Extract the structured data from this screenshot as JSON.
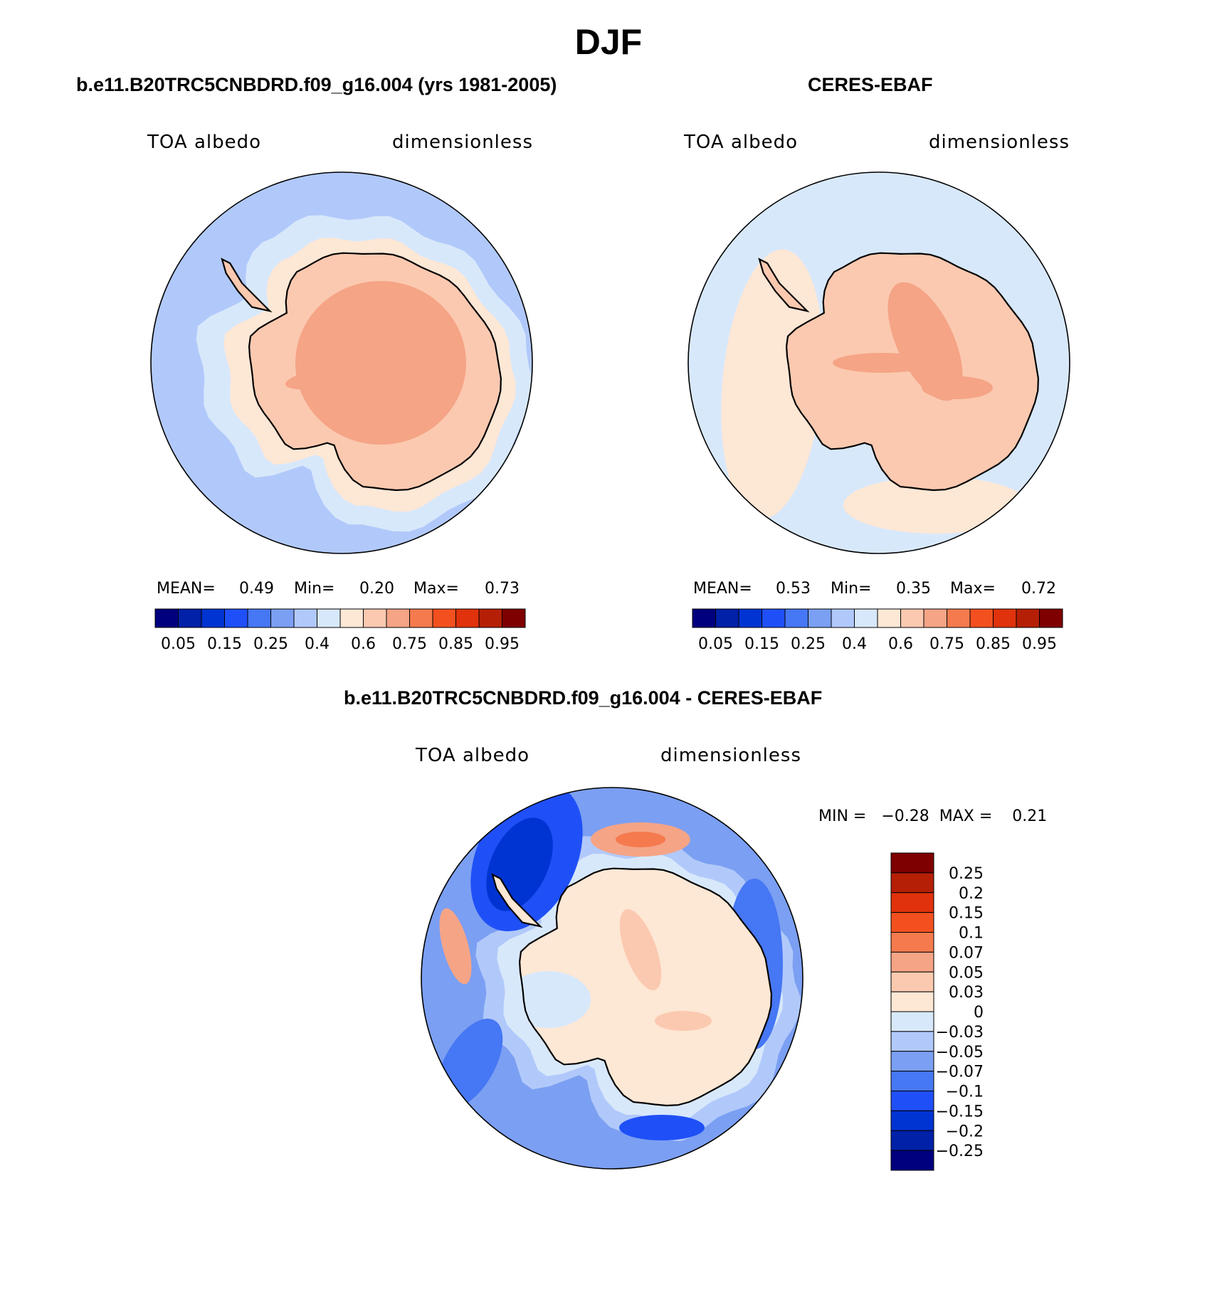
{
  "figure": {
    "title": "DJF"
  },
  "panel1": {
    "title": "b.e11.B20TRC5CNBDRD.f09_g16.004 (yrs 1981-2005)",
    "left_label": "TOA albedo",
    "right_label": "dimensionless",
    "mean_label": "MEAN=",
    "mean": "0.49",
    "min_label": "Min=",
    "min": "0.20",
    "max_label": "Max=",
    "max": "0.73"
  },
  "panel2": {
    "title": "CERES-EBAF",
    "left_label": "TOA albedo",
    "right_label": "dimensionless",
    "mean_label": "MEAN=",
    "mean": "0.53",
    "min_label": "Min=",
    "min": "0.35",
    "max_label": "Max=",
    "max": "0.72"
  },
  "panel3": {
    "title": "b.e11.B20TRC5CNBDRD.f09_g16.004 - CERES-EBAF",
    "left_label": "TOA albedo",
    "right_label": "dimensionless",
    "minmax": "MIN =   −0.28  MAX =    0.21"
  },
  "colors": {
    "abs_scale": [
      "#00007f",
      "#0021a8",
      "#0034d2",
      "#1f50f7",
      "#4677f4",
      "#7b9ff2",
      "#b1c9fa",
      "#d8e8fb",
      "#fde7d5",
      "#fbc9b0",
      "#f5a486",
      "#f57a4e",
      "#f3501f",
      "#e0320c",
      "#b51f06",
      "#7f0000"
    ],
    "diff_scale": [
      "#00007f",
      "#0021a8",
      "#0034d2",
      "#1f50f7",
      "#4677f4",
      "#7b9ff2",
      "#b1c9fa",
      "#d8e8fb",
      "#fde7d5",
      "#fbc9b0",
      "#f5a486",
      "#f57a4e",
      "#f3501f",
      "#e0320c",
      "#b51f06",
      "#7f0000"
    ],
    "coast": "#000000"
  },
  "chart_data": [
    {
      "type": "heatmap",
      "title": "b.e11.B20TRC5CNBDRD.f09_g16.004 (yrs 1981-2005)",
      "variable": "TOA albedo",
      "units": "dimensionless",
      "projection": "south polar stereographic",
      "mean": 0.49,
      "min": 0.2,
      "max": 0.73,
      "colorbar_ticks": [
        "0.05",
        "0.15",
        "0.25",
        "0.4",
        "0.6",
        "0.75",
        "0.85",
        "0.95"
      ],
      "regions": {
        "open_ocean": 0.35,
        "inner_ring": 0.45,
        "coastal_band": 0.55,
        "continent_interior": 0.7
      }
    },
    {
      "type": "heatmap",
      "title": "CERES-EBAF",
      "variable": "TOA albedo",
      "units": "dimensionless",
      "projection": "south polar stereographic",
      "mean": 0.53,
      "min": 0.35,
      "max": 0.72,
      "colorbar_ticks": [
        "0.05",
        "0.15",
        "0.25",
        "0.4",
        "0.6",
        "0.75",
        "0.85",
        "0.95"
      ],
      "regions": {
        "open_ocean": 0.45,
        "west_antarctic_belt": 0.55,
        "continent_interior": 0.65
      }
    },
    {
      "type": "heatmap",
      "title": "b.e11.B20TRC5CNBDRD.f09_g16.004 - CERES-EBAF",
      "variable": "TOA albedo",
      "units": "dimensionless",
      "projection": "south polar stereographic",
      "min": -0.28,
      "max": 0.21,
      "colorbar_ticks": [
        "0.25",
        "0.2",
        "0.15",
        "0.1",
        "0.07",
        "0.05",
        "0.03",
        "0",
        "−0.03",
        "−0.05",
        "−0.07",
        "−0.1",
        "−0.15",
        "−0.2",
        "−0.25"
      ],
      "regions": {
        "southern_ocean": -0.07,
        "antarctic_peninsula_west": -0.15,
        "continent_interior": 0.02,
        "pacific_sector_coast": 0.1
      }
    }
  ]
}
